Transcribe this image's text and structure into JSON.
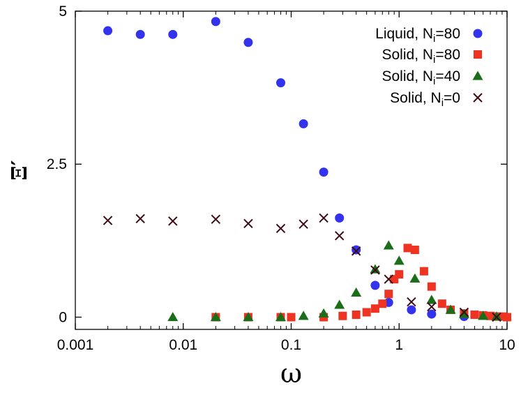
{
  "chart_data": {
    "type": "scatter",
    "title": "",
    "xlabel": "ω",
    "ylabel": "Ξ′",
    "xscale": "log",
    "xlim": [
      0.001,
      10
    ],
    "ylim": [
      -0.2,
      5
    ],
    "x_ticks": [
      0.001,
      0.01,
      0.1,
      1,
      10
    ],
    "x_tick_labels": [
      "0.001",
      "0.01",
      "0.1",
      "1",
      "10"
    ],
    "y_ticks": [
      0,
      2.5,
      5
    ],
    "y_tick_labels": [
      "0",
      "2.5",
      "5"
    ],
    "grid": false,
    "legend_position": "top-right",
    "series": [
      {
        "name": "Liquid, N",
        "name_subscript": "i",
        "name_suffix": "=80",
        "marker": "circle",
        "color": "#3333ee",
        "points": [
          [
            0.002,
            4.68
          ],
          [
            0.004,
            4.62
          ],
          [
            0.008,
            4.62
          ],
          [
            0.02,
            4.83
          ],
          [
            0.04,
            4.49
          ],
          [
            0.08,
            3.83
          ],
          [
            0.13,
            3.16
          ],
          [
            0.2,
            2.37
          ],
          [
            0.28,
            1.62
          ],
          [
            0.4,
            1.1
          ],
          [
            0.6,
            0.52
          ],
          [
            0.8,
            0.24
          ],
          [
            1.3,
            0.12
          ],
          [
            2.0,
            0.05
          ],
          [
            4.0,
            0.01
          ]
        ]
      },
      {
        "name": "Solid, N",
        "name_subscript": "i",
        "name_suffix": "=80",
        "marker": "square",
        "color": "#ee3322",
        "points": [
          [
            0.02,
            0.0
          ],
          [
            0.04,
            0.0
          ],
          [
            0.08,
            0.0
          ],
          [
            0.1,
            0.0
          ],
          [
            0.2,
            0.0
          ],
          [
            0.3,
            0.02
          ],
          [
            0.4,
            0.04
          ],
          [
            0.5,
            0.08
          ],
          [
            0.6,
            0.14
          ],
          [
            0.7,
            0.22
          ],
          [
            0.8,
            0.38
          ],
          [
            0.9,
            0.62
          ],
          [
            1.0,
            0.7
          ],
          [
            1.2,
            1.13
          ],
          [
            1.4,
            1.1
          ],
          [
            1.7,
            0.75
          ],
          [
            2.0,
            0.5
          ],
          [
            2.5,
            0.22
          ],
          [
            3.0,
            0.12
          ],
          [
            4.0,
            0.06
          ],
          [
            5.0,
            0.04
          ],
          [
            6.0,
            0.03
          ],
          [
            7.0,
            0.02
          ],
          [
            8.0,
            0.01
          ],
          [
            9.0,
            0.01
          ],
          [
            10.0,
            0.0
          ]
        ]
      },
      {
        "name": "Solid, N",
        "name_subscript": "i",
        "name_suffix": "=40",
        "marker": "triangle",
        "color": "#1a6e1a",
        "points": [
          [
            0.008,
            0.0
          ],
          [
            0.02,
            0.0
          ],
          [
            0.04,
            0.0
          ],
          [
            0.08,
            0.0
          ],
          [
            0.13,
            0.02
          ],
          [
            0.2,
            0.06
          ],
          [
            0.28,
            0.2
          ],
          [
            0.4,
            0.4
          ],
          [
            0.6,
            0.78
          ],
          [
            0.8,
            1.17
          ],
          [
            1.0,
            0.92
          ],
          [
            1.4,
            0.63
          ],
          [
            2.0,
            0.28
          ],
          [
            3.0,
            0.12
          ],
          [
            4.0,
            0.05
          ],
          [
            6.0,
            0.02
          ],
          [
            8.0,
            0.01
          ]
        ]
      },
      {
        "name": "Solid, N",
        "name_subscript": "i",
        "name_suffix": "=0",
        "marker": "cross",
        "color": "#3d0a16",
        "points": [
          [
            0.002,
            1.58
          ],
          [
            0.004,
            1.61
          ],
          [
            0.008,
            1.57
          ],
          [
            0.02,
            1.6
          ],
          [
            0.04,
            1.53
          ],
          [
            0.08,
            1.45
          ],
          [
            0.13,
            1.52
          ],
          [
            0.2,
            1.62
          ],
          [
            0.28,
            1.33
          ],
          [
            0.4,
            1.08
          ],
          [
            0.6,
            0.77
          ],
          [
            0.8,
            0.62
          ],
          [
            1.3,
            0.25
          ],
          [
            2.0,
            0.17
          ],
          [
            4.0,
            0.08
          ],
          [
            8.0,
            0.0
          ]
        ]
      }
    ]
  }
}
